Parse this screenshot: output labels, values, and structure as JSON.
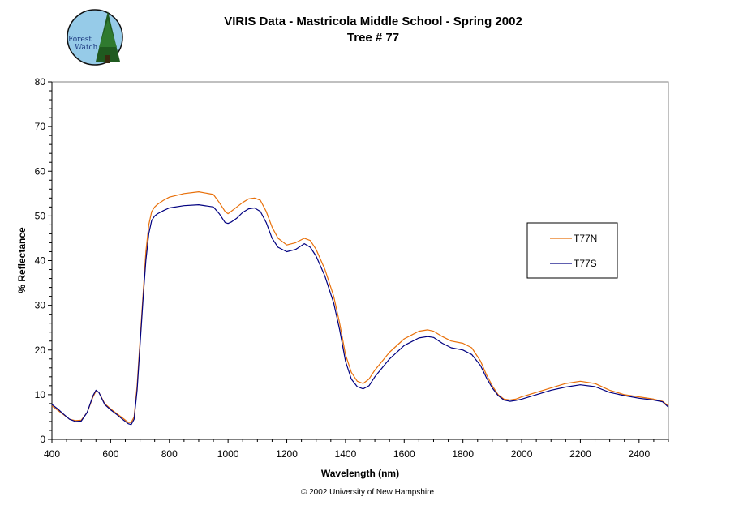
{
  "logo": {
    "line1": "Forest",
    "line2": "Watch"
  },
  "chart_data": {
    "type": "line",
    "title": "VIRIS Data - Mastricola Middle School - Spring 2002",
    "subtitle": "Tree # 77",
    "xlabel": "Wavelength (nm)",
    "ylabel": "% Reflectance",
    "xlim": [
      400,
      2500
    ],
    "ylim": [
      0,
      80
    ],
    "xticks": [
      400,
      600,
      800,
      1000,
      1200,
      1400,
      1600,
      1800,
      2000,
      2200,
      2400
    ],
    "yticks": [
      0,
      10,
      20,
      30,
      40,
      50,
      60,
      70,
      80
    ],
    "legend_position": "right",
    "series": [
      {
        "name": "T77N",
        "color": "#e8700a",
        "x": [
          400,
          420,
          440,
          460,
          480,
          500,
          520,
          540,
          550,
          560,
          580,
          600,
          620,
          640,
          660,
          670,
          680,
          690,
          700,
          710,
          720,
          730,
          740,
          750,
          760,
          780,
          800,
          850,
          900,
          950,
          970,
          990,
          1000,
          1010,
          1030,
          1050,
          1070,
          1090,
          1110,
          1130,
          1150,
          1170,
          1200,
          1230,
          1260,
          1280,
          1300,
          1330,
          1360,
          1380,
          1400,
          1420,
          1440,
          1460,
          1480,
          1500,
          1550,
          1600,
          1650,
          1680,
          1700,
          1730,
          1760,
          1800,
          1830,
          1860,
          1880,
          1900,
          1920,
          1940,
          1960,
          1980,
          2000,
          2050,
          2100,
          2150,
          2200,
          2250,
          2300,
          2350,
          2400,
          2450,
          2480,
          2500
        ],
        "values": [
          7.5,
          6.5,
          5.5,
          4.5,
          4.2,
          4.3,
          6.0,
          9.5,
          10.8,
          10.5,
          8.0,
          6.8,
          5.8,
          4.8,
          3.8,
          3.8,
          5.0,
          12.0,
          22.0,
          32.0,
          42.0,
          48.0,
          51.0,
          52.0,
          52.6,
          53.5,
          54.2,
          55.0,
          55.4,
          54.8,
          53.0,
          51.0,
          50.5,
          51.0,
          52.0,
          53.0,
          53.8,
          54.0,
          53.5,
          51.0,
          47.5,
          45.0,
          43.5,
          44.0,
          45.0,
          44.5,
          42.5,
          38.0,
          32.0,
          26.0,
          19.0,
          15.0,
          13.0,
          12.5,
          13.5,
          15.5,
          19.5,
          22.5,
          24.2,
          24.5,
          24.2,
          23.0,
          22.0,
          21.5,
          20.5,
          17.5,
          14.5,
          12.0,
          10.0,
          9.0,
          8.8,
          9.0,
          9.5,
          10.5,
          11.5,
          12.5,
          13.0,
          12.5,
          11.0,
          10.0,
          9.5,
          9.0,
          8.5,
          7.5
        ]
      },
      {
        "name": "T77S",
        "color": "#000080",
        "x": [
          400,
          420,
          440,
          460,
          480,
          500,
          520,
          540,
          550,
          560,
          580,
          600,
          620,
          640,
          660,
          670,
          680,
          690,
          700,
          710,
          720,
          730,
          740,
          750,
          760,
          780,
          800,
          850,
          900,
          950,
          970,
          990,
          1000,
          1010,
          1030,
          1050,
          1070,
          1090,
          1110,
          1130,
          1150,
          1170,
          1200,
          1230,
          1260,
          1280,
          1300,
          1330,
          1360,
          1380,
          1400,
          1420,
          1440,
          1460,
          1480,
          1500,
          1550,
          1600,
          1650,
          1680,
          1700,
          1730,
          1760,
          1800,
          1830,
          1860,
          1880,
          1900,
          1920,
          1940,
          1960,
          1980,
          2000,
          2050,
          2100,
          2150,
          2200,
          2250,
          2300,
          2350,
          2400,
          2450,
          2480,
          2500
        ],
        "values": [
          7.8,
          6.8,
          5.6,
          4.5,
          4.0,
          4.1,
          6.0,
          9.8,
          11.0,
          10.5,
          7.8,
          6.6,
          5.6,
          4.5,
          3.5,
          3.3,
          4.5,
          11.0,
          21.0,
          31.0,
          40.0,
          46.0,
          49.0,
          50.0,
          50.5,
          51.2,
          51.8,
          52.3,
          52.5,
          52.0,
          50.5,
          48.5,
          48.3,
          48.6,
          49.5,
          50.8,
          51.6,
          51.8,
          51.0,
          48.5,
          45.0,
          43.0,
          42.0,
          42.5,
          43.8,
          43.0,
          41.0,
          36.5,
          30.5,
          24.5,
          17.5,
          13.5,
          11.8,
          11.3,
          12.0,
          14.0,
          18.0,
          21.0,
          22.7,
          23.0,
          22.8,
          21.5,
          20.5,
          20.0,
          19.0,
          16.5,
          13.8,
          11.5,
          9.8,
          8.8,
          8.5,
          8.7,
          9.0,
          10.0,
          11.0,
          11.7,
          12.2,
          11.8,
          10.5,
          9.8,
          9.2,
          8.8,
          8.4,
          7.2
        ]
      }
    ]
  },
  "footer": "© 2002 University of New Hampshire"
}
